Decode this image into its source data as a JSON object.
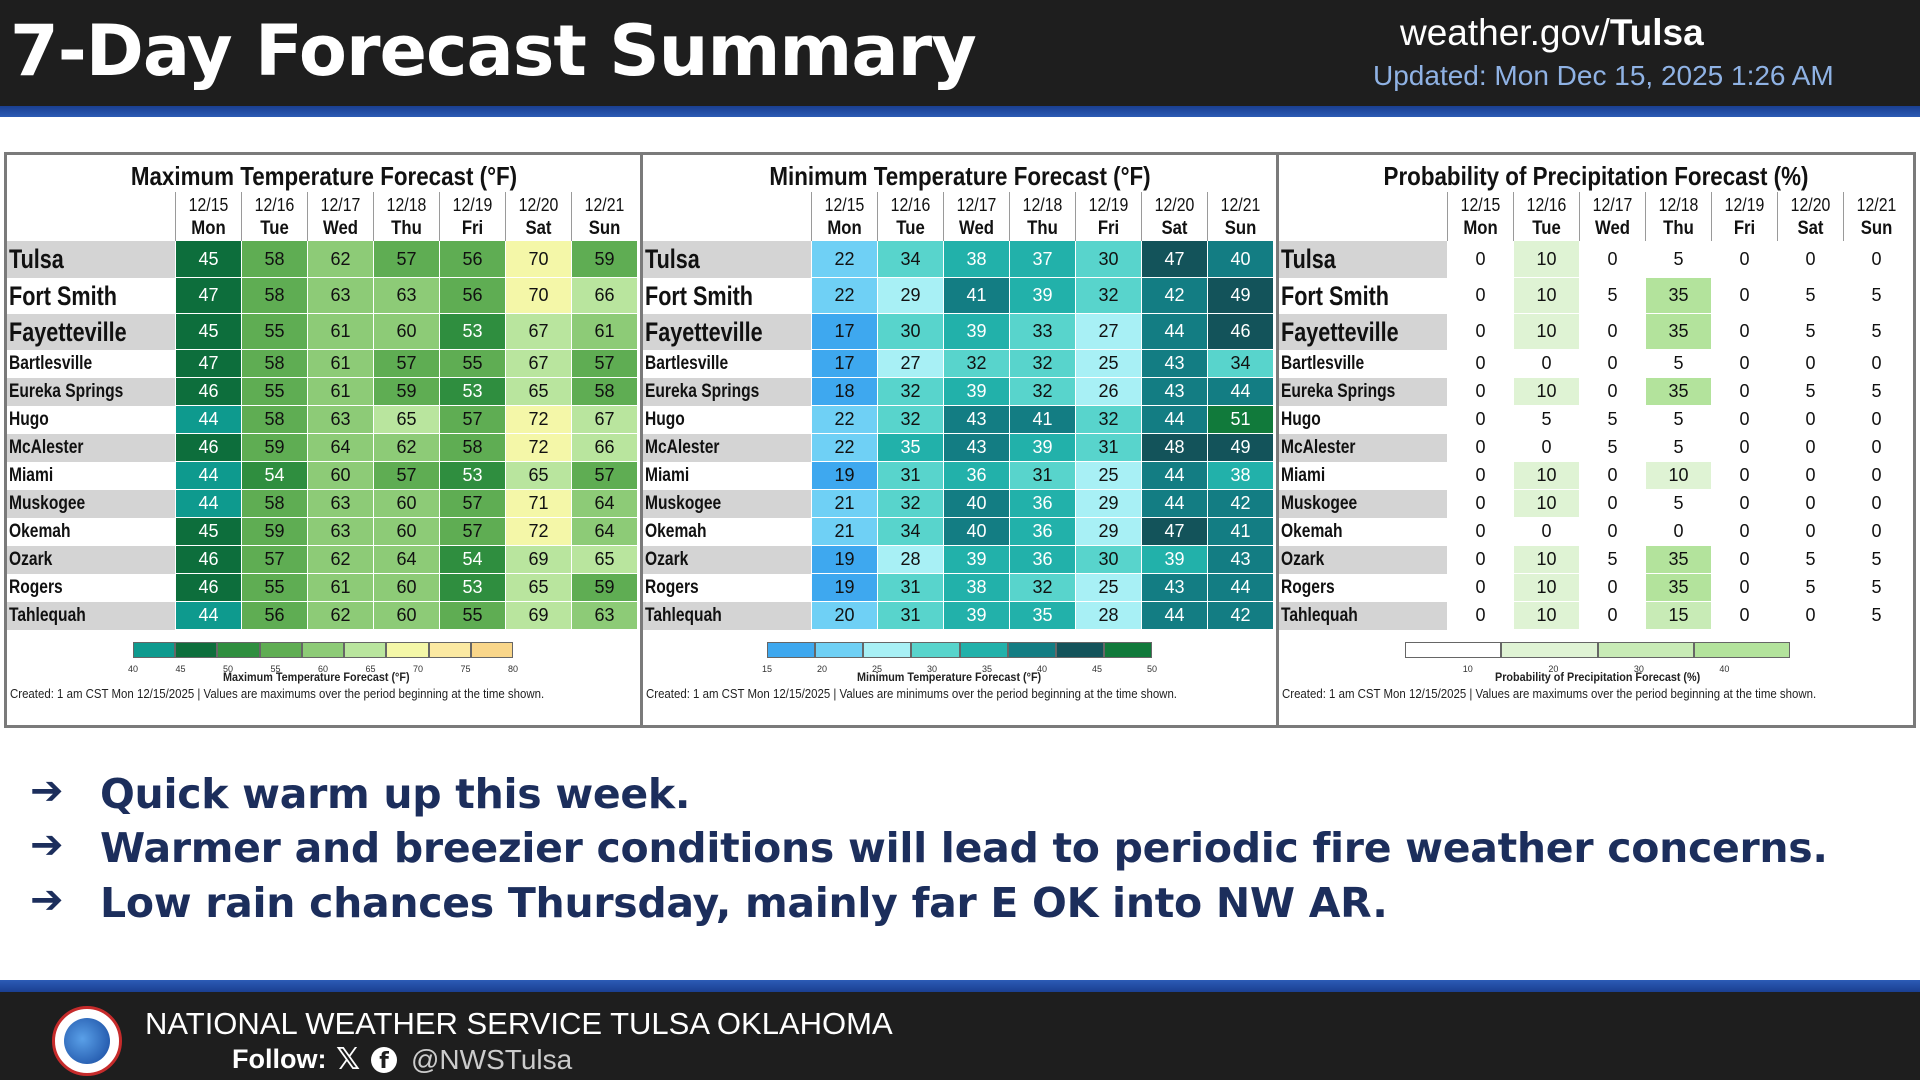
{
  "header": {
    "title": "7-Day Forecast Summary",
    "site_prefix": "weather.gov/",
    "site_office": "Tulsa",
    "updated": "Updated: Mon Dec 15, 2025 1:26 AM"
  },
  "days": [
    {
      "date": "12/15",
      "dow": "Mon"
    },
    {
      "date": "12/16",
      "dow": "Tue"
    },
    {
      "date": "12/17",
      "dow": "Wed"
    },
    {
      "date": "12/18",
      "dow": "Thu"
    },
    {
      "date": "12/19",
      "dow": "Fri"
    },
    {
      "date": "12/20",
      "dow": "Sat"
    },
    {
      "date": "12/21",
      "dow": "Sun"
    }
  ],
  "cities": [
    "Tulsa",
    "Fort Smith",
    "Fayetteville",
    "Bartlesville",
    "Eureka Springs",
    "Hugo",
    "McAlester",
    "Miami",
    "Muskogee",
    "Okemah",
    "Ozark",
    "Rogers",
    "Tahlequah"
  ],
  "panels": [
    {
      "id": "max",
      "title": "Maximum Temperature Forecast (°F)",
      "legend_caption": "Maximum Temperature Forecast (°F)",
      "legend_ticks": [
        "40",
        "45",
        "50",
        "55",
        "60",
        "65",
        "70",
        "75",
        "80"
      ],
      "created": "Created: 1 am CST Mon 12/15/2025  |  Values are maximums over the period beginning at the time shown.",
      "values": [
        [
          45,
          58,
          62,
          57,
          56,
          70,
          59
        ],
        [
          47,
          58,
          63,
          63,
          56,
          70,
          66
        ],
        [
          45,
          55,
          61,
          60,
          53,
          67,
          61
        ],
        [
          47,
          58,
          61,
          57,
          55,
          67,
          57
        ],
        [
          46,
          55,
          61,
          59,
          53,
          65,
          58
        ],
        [
          44,
          58,
          63,
          65,
          57,
          72,
          67
        ],
        [
          46,
          59,
          64,
          62,
          58,
          72,
          66
        ],
        [
          44,
          54,
          60,
          57,
          53,
          65,
          57
        ],
        [
          44,
          58,
          63,
          60,
          57,
          71,
          64
        ],
        [
          45,
          59,
          63,
          60,
          57,
          72,
          64
        ],
        [
          46,
          57,
          62,
          64,
          54,
          69,
          65
        ],
        [
          46,
          55,
          61,
          60,
          53,
          65,
          59
        ],
        [
          44,
          56,
          62,
          60,
          55,
          69,
          63
        ]
      ],
      "colors": {
        "40": "#0e9a8e",
        "45": "#0d6e3c",
        "50": "#2f8e3f",
        "55": "#5fad53",
        "60": "#8dcb77",
        "65": "#b9e59e",
        "70": "#f4f7a8",
        "75": "#fbe9a2",
        "80": "#f9d68a"
      }
    },
    {
      "id": "min",
      "title": "Minimum Temperature Forecast (°F)",
      "legend_caption": "Minimum Temperature Forecast (°F)",
      "legend_ticks": [
        "15",
        "20",
        "25",
        "30",
        "35",
        "40",
        "45",
        "50"
      ],
      "created": "Created: 1 am CST Mon 12/15/2025  |  Values are minimums over the period beginning at the time shown.",
      "values": [
        [
          22,
          34,
          38,
          37,
          30,
          47,
          40
        ],
        [
          22,
          29,
          41,
          39,
          32,
          42,
          49
        ],
        [
          17,
          30,
          39,
          33,
          27,
          44,
          46
        ],
        [
          17,
          27,
          32,
          32,
          25,
          43,
          34
        ],
        [
          18,
          32,
          39,
          32,
          26,
          43,
          44
        ],
        [
          22,
          32,
          43,
          41,
          32,
          44,
          51
        ],
        [
          22,
          35,
          43,
          39,
          31,
          48,
          49
        ],
        [
          19,
          31,
          36,
          31,
          25,
          44,
          38
        ],
        [
          21,
          32,
          40,
          36,
          29,
          44,
          42
        ],
        [
          21,
          34,
          40,
          36,
          29,
          47,
          41
        ],
        [
          19,
          28,
          39,
          36,
          30,
          39,
          43
        ],
        [
          19,
          31,
          38,
          32,
          25,
          43,
          44
        ],
        [
          20,
          31,
          39,
          35,
          28,
          44,
          42
        ]
      ],
      "colors": {
        "15": "#3ea8ef",
        "20": "#6fd0f5",
        "25": "#a8f0f5",
        "30": "#58d4cc",
        "35": "#22b1aa",
        "40": "#137d83",
        "45": "#13535a",
        "50": "#117a3b"
      }
    },
    {
      "id": "pop",
      "title": "Probability of Precipitation Forecast (%)",
      "legend_caption": "Probability of Precipitation Forecast (%)",
      "legend_ticks": [
        "10",
        "20",
        "30",
        "40"
      ],
      "created": "Created: 1 am CST Mon 12/15/2025  |  Values are maximums over the period beginning at the time shown.",
      "values": [
        [
          0,
          10,
          0,
          5,
          0,
          0,
          0
        ],
        [
          0,
          10,
          5,
          35,
          0,
          5,
          5
        ],
        [
          0,
          10,
          0,
          35,
          0,
          5,
          5
        ],
        [
          0,
          0,
          0,
          5,
          0,
          0,
          0
        ],
        [
          0,
          10,
          0,
          35,
          0,
          5,
          5
        ],
        [
          0,
          5,
          5,
          5,
          0,
          0,
          0
        ],
        [
          0,
          0,
          5,
          5,
          0,
          0,
          0
        ],
        [
          0,
          10,
          0,
          10,
          0,
          0,
          0
        ],
        [
          0,
          10,
          0,
          5,
          0,
          0,
          0
        ],
        [
          0,
          0,
          0,
          0,
          0,
          0,
          0
        ],
        [
          0,
          10,
          5,
          35,
          0,
          5,
          5
        ],
        [
          0,
          10,
          0,
          35,
          0,
          5,
          5
        ],
        [
          0,
          10,
          0,
          15,
          0,
          0,
          5
        ]
      ],
      "colors": {
        "0": "#ffffff",
        "10": "#dff3d4",
        "20": "#c8ebb6",
        "30": "#b3e39c",
        "40": "#a1da86"
      }
    }
  ],
  "bullets": [
    "Quick warm up this week.",
    "Warmer and breezier conditions will lead to periodic fire weather concerns.",
    "Low rain chances Thursday, mainly far E OK into NW AR."
  ],
  "footer": {
    "org": "NATIONAL WEATHER SERVICE TULSA OKLAHOMA",
    "follow": "Follow:",
    "handle": "@NWSTulsa"
  },
  "icons": {
    "bullet": "right-arrow-icon",
    "x": "x-social-icon",
    "facebook": "facebook-icon",
    "logo": "nws-logo"
  }
}
